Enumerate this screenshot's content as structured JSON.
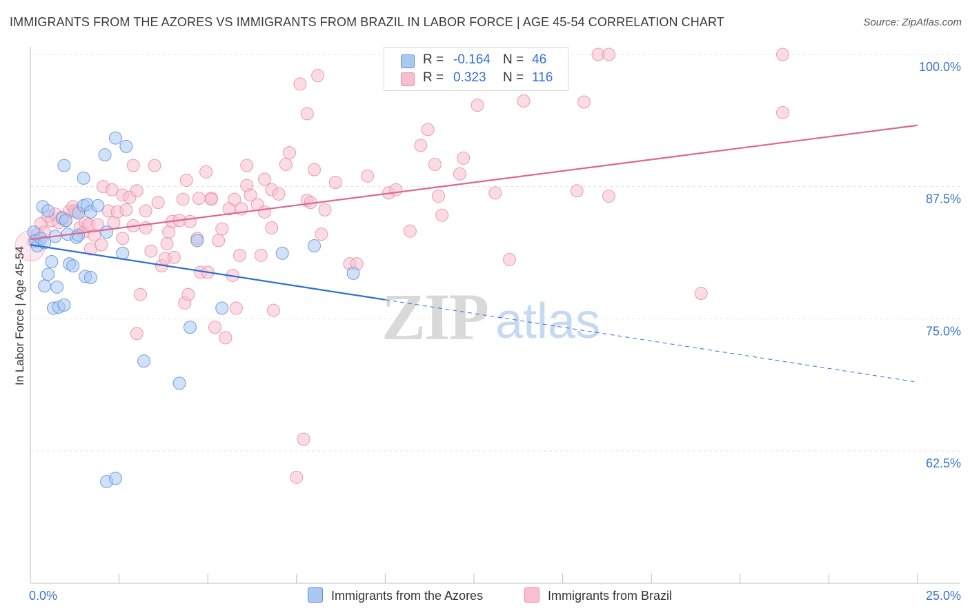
{
  "title": "IMMIGRANTS FROM THE AZORES VS IMMIGRANTS FROM BRAZIL IN LABOR FORCE | AGE 45-54 CORRELATION CHART",
  "source": "Source: ZipAtlas.com",
  "watermark": {
    "zip": "ZIP",
    "atlas": "atlas"
  },
  "legend": {
    "azores": {
      "r_label": "R =",
      "r_value": "-0.164",
      "n_label": "N =",
      "n_value": "46"
    },
    "brazil": {
      "r_label": "R =",
      "r_value": "0.323",
      "n_label": "N =",
      "n_value": "116"
    }
  },
  "colors": {
    "azores_fill": "#a9c8f2",
    "azores_stroke": "#5b8fd8",
    "azores_line": "#2d6fd2",
    "brazil_fill": "#f7bfd0",
    "brazil_stroke": "#e88aa8",
    "brazil_line": "#e0648f",
    "tick_label": "#3b74c9",
    "grid": "#e2e2e2"
  },
  "chart_data": {
    "type": "scatter",
    "title": "IMMIGRANTS FROM THE AZORES VS IMMIGRANTS FROM BRAZIL IN LABOR FORCE | AGE 45-54 CORRELATION CHART",
    "xlabel": "",
    "ylabel": "In Labor Force | Age 45-54",
    "xlim": [
      0,
      25
    ],
    "ylim": [
      50,
      102
    ],
    "x_tick_labels": [
      "0.0%",
      "25.0%"
    ],
    "y_ticks": [
      62.5,
      75.0,
      87.5,
      100.0
    ],
    "y_tick_labels": [
      "62.5%",
      "75.0%",
      "87.5%",
      "100.0%"
    ],
    "grid": true,
    "series": [
      {
        "name": "Immigrants from the Azores",
        "trend": {
          "x": [
            0,
            10
          ],
          "y": [
            82.0,
            76.8
          ],
          "dashed_to": {
            "x": 25,
            "y": 69.0
          }
        },
        "points": [
          [
            0.1,
            83.2
          ],
          [
            0.15,
            82.4
          ],
          [
            0.2,
            81.9
          ],
          [
            0.3,
            82.6
          ],
          [
            0.35,
            85.6
          ],
          [
            0.4,
            82.2
          ],
          [
            0.4,
            78.1
          ],
          [
            0.5,
            85.2
          ],
          [
            0.5,
            79.2
          ],
          [
            0.6,
            80.4
          ],
          [
            0.65,
            76.0
          ],
          [
            0.7,
            82.8
          ],
          [
            0.75,
            78.0
          ],
          [
            0.8,
            76.1
          ],
          [
            0.9,
            84.5
          ],
          [
            0.95,
            76.3
          ],
          [
            0.95,
            89.5
          ],
          [
            1.0,
            84.3
          ],
          [
            1.05,
            83.0
          ],
          [
            1.1,
            80.2
          ],
          [
            1.2,
            80.0
          ],
          [
            1.3,
            82.7
          ],
          [
            1.35,
            82.9
          ],
          [
            1.35,
            85.0
          ],
          [
            1.5,
            85.7
          ],
          [
            1.5,
            88.3
          ],
          [
            1.55,
            79.0
          ],
          [
            1.6,
            85.8
          ],
          [
            1.7,
            85.1
          ],
          [
            1.7,
            78.9
          ],
          [
            1.9,
            85.7
          ],
          [
            2.1,
            90.5
          ],
          [
            2.15,
            83.2
          ],
          [
            2.4,
            92.1
          ],
          [
            2.6,
            81.2
          ],
          [
            2.7,
            91.3
          ],
          [
            3.2,
            71.0
          ],
          [
            4.2,
            68.9
          ],
          [
            4.5,
            74.2
          ],
          [
            4.7,
            82.4
          ],
          [
            5.4,
            76.0
          ],
          [
            7.1,
            81.2
          ],
          [
            8.0,
            81.9
          ],
          [
            9.1,
            79.3
          ],
          [
            2.15,
            59.6
          ],
          [
            2.4,
            59.9
          ]
        ]
      },
      {
        "name": "Immigrants from Brazil",
        "trend": {
          "x": [
            0,
            25
          ],
          "y": [
            82.5,
            93.3
          ]
        },
        "points": [
          [
            0.1,
            82.3
          ],
          [
            0.2,
            83.0
          ],
          [
            0.3,
            84.0
          ],
          [
            0.4,
            83.2
          ],
          [
            0.5,
            84.7
          ],
          [
            0.6,
            84.3
          ],
          [
            0.7,
            84.9
          ],
          [
            0.8,
            84.1
          ],
          [
            0.9,
            84.6
          ],
          [
            1.0,
            84.3
          ],
          [
            1.1,
            85.2
          ],
          [
            1.2,
            85.6
          ],
          [
            1.3,
            85.1
          ],
          [
            1.4,
            83.6
          ],
          [
            1.5,
            83.2
          ],
          [
            1.55,
            84.1
          ],
          [
            1.65,
            83.9
          ],
          [
            1.7,
            81.6
          ],
          [
            1.8,
            82.9
          ],
          [
            1.9,
            83.9
          ],
          [
            2.0,
            82.0
          ],
          [
            2.05,
            87.5
          ],
          [
            2.2,
            85.2
          ],
          [
            2.3,
            87.2
          ],
          [
            2.35,
            84.1
          ],
          [
            2.45,
            85.1
          ],
          [
            2.6,
            86.7
          ],
          [
            2.6,
            82.6
          ],
          [
            2.7,
            85.3
          ],
          [
            2.8,
            86.5
          ],
          [
            2.9,
            89.5
          ],
          [
            3.0,
            87.1
          ],
          [
            3.1,
            77.3
          ],
          [
            3.25,
            85.2
          ],
          [
            3.25,
            83.6
          ],
          [
            3.4,
            81.4
          ],
          [
            3.5,
            89.5
          ],
          [
            3.6,
            86.0
          ],
          [
            3.7,
            80.0
          ],
          [
            3.8,
            80.7
          ],
          [
            3.85,
            82.1
          ],
          [
            3.9,
            83.2
          ],
          [
            4.0,
            84.2
          ],
          [
            4.05,
            80.8
          ],
          [
            4.2,
            84.3
          ],
          [
            4.3,
            86.3
          ],
          [
            4.35,
            76.5
          ],
          [
            4.4,
            88.1
          ],
          [
            4.45,
            77.3
          ],
          [
            4.5,
            84.2
          ],
          [
            4.7,
            82.6
          ],
          [
            4.8,
            79.4
          ],
          [
            4.95,
            88.9
          ],
          [
            5.0,
            79.4
          ],
          [
            5.1,
            86.4
          ],
          [
            5.2,
            74.2
          ],
          [
            5.3,
            82.4
          ],
          [
            5.4,
            83.5
          ],
          [
            5.5,
            73.2
          ],
          [
            5.6,
            85.4
          ],
          [
            5.7,
            79.1
          ],
          [
            5.75,
            86.3
          ],
          [
            5.8,
            76.0
          ],
          [
            5.9,
            81.0
          ],
          [
            5.95,
            85.4
          ],
          [
            6.1,
            89.5
          ],
          [
            6.1,
            87.6
          ],
          [
            6.4,
            85.8
          ],
          [
            6.5,
            81.0
          ],
          [
            6.6,
            88.2
          ],
          [
            6.6,
            85.1
          ],
          [
            6.8,
            87.2
          ],
          [
            6.8,
            83.6
          ],
          [
            6.85,
            75.8
          ],
          [
            7.0,
            86.8
          ],
          [
            7.2,
            89.6
          ],
          [
            7.3,
            90.7
          ],
          [
            7.6,
            97.2
          ],
          [
            7.7,
            63.6
          ],
          [
            7.8,
            94.4
          ],
          [
            7.5,
            60.0
          ],
          [
            7.8,
            86.2
          ],
          [
            7.9,
            86.0
          ],
          [
            8.0,
            89.1
          ],
          [
            8.1,
            98.0
          ],
          [
            8.2,
            83.0
          ],
          [
            8.3,
            85.3
          ],
          [
            8.6,
            87.9
          ],
          [
            9.0,
            80.2
          ],
          [
            9.2,
            80.2
          ],
          [
            9.5,
            88.5
          ],
          [
            10.1,
            86.9
          ],
          [
            10.3,
            87.2
          ],
          [
            10.7,
            83.3
          ],
          [
            11.0,
            91.4
          ],
          [
            11.2,
            92.9
          ],
          [
            11.4,
            89.6
          ],
          [
            11.5,
            86.6
          ],
          [
            11.6,
            84.8
          ],
          [
            12.2,
            90.2
          ],
          [
            12.1,
            88.7
          ],
          [
            12.6,
            95.2
          ],
          [
            13.1,
            86.9
          ],
          [
            13.5,
            80.6
          ],
          [
            13.9,
            95.6
          ],
          [
            15.4,
            87.1
          ],
          [
            15.6,
            95.5
          ],
          [
            16.3,
            86.6
          ],
          [
            18.9,
            77.4
          ],
          [
            21.2,
            94.5
          ],
          [
            5.1,
            86.3
          ],
          [
            6.2,
            86.7
          ],
          [
            3.0,
            73.6
          ],
          [
            1.25,
            85.2
          ],
          [
            2.9,
            83.8
          ],
          [
            4.75,
            86.4
          ]
        ]
      }
    ]
  },
  "bottom_legend": {
    "azores_label": "Immigrants from the Azores",
    "brazil_label": "Immigrants from Brazil"
  }
}
